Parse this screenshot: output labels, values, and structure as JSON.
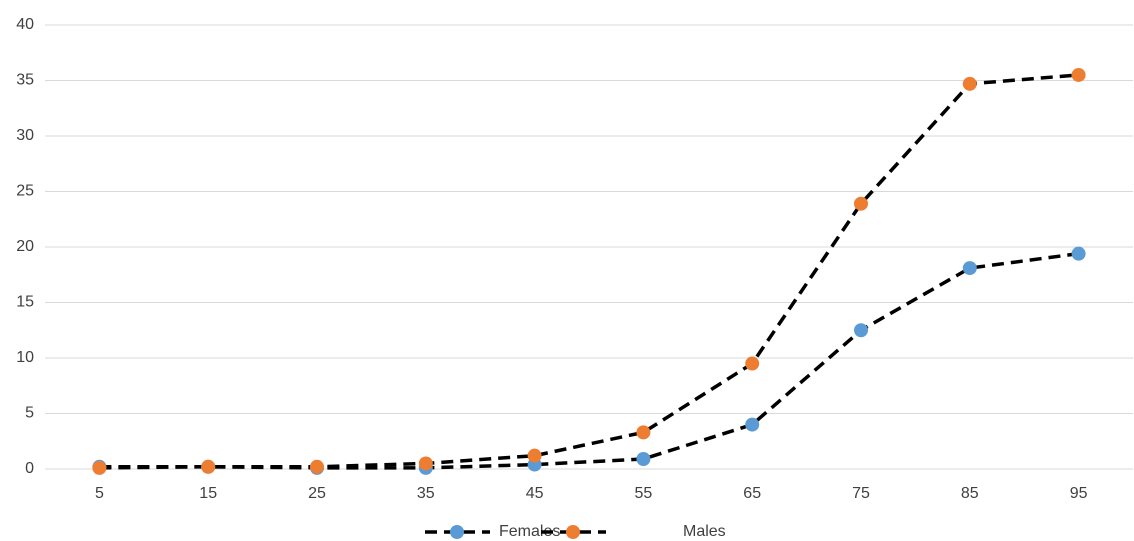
{
  "chart_data": {
    "type": "line",
    "categories": [
      "5",
      "15",
      "25",
      "35",
      "45",
      "55",
      "65",
      "75",
      "85",
      "95"
    ],
    "series": [
      {
        "name": "Females",
        "color": "#5b9bd5",
        "line_color": "#000000",
        "values": [
          0.2,
          0.2,
          0.1,
          0.1,
          0.4,
          0.9,
          4.0,
          12.5,
          18.1,
          19.4
        ]
      },
      {
        "name": "Males",
        "color": "#ed7d31",
        "line_color": "#000000",
        "values": [
          0.1,
          0.2,
          0.2,
          0.5,
          1.2,
          3.3,
          9.5,
          23.9,
          34.7,
          35.5
        ]
      }
    ],
    "ylim": [
      0,
      40
    ],
    "yticks": [
      0,
      5,
      10,
      15,
      20,
      25,
      30,
      35,
      40
    ],
    "grid": true,
    "line_style": "dashed",
    "legend": "bottom"
  }
}
